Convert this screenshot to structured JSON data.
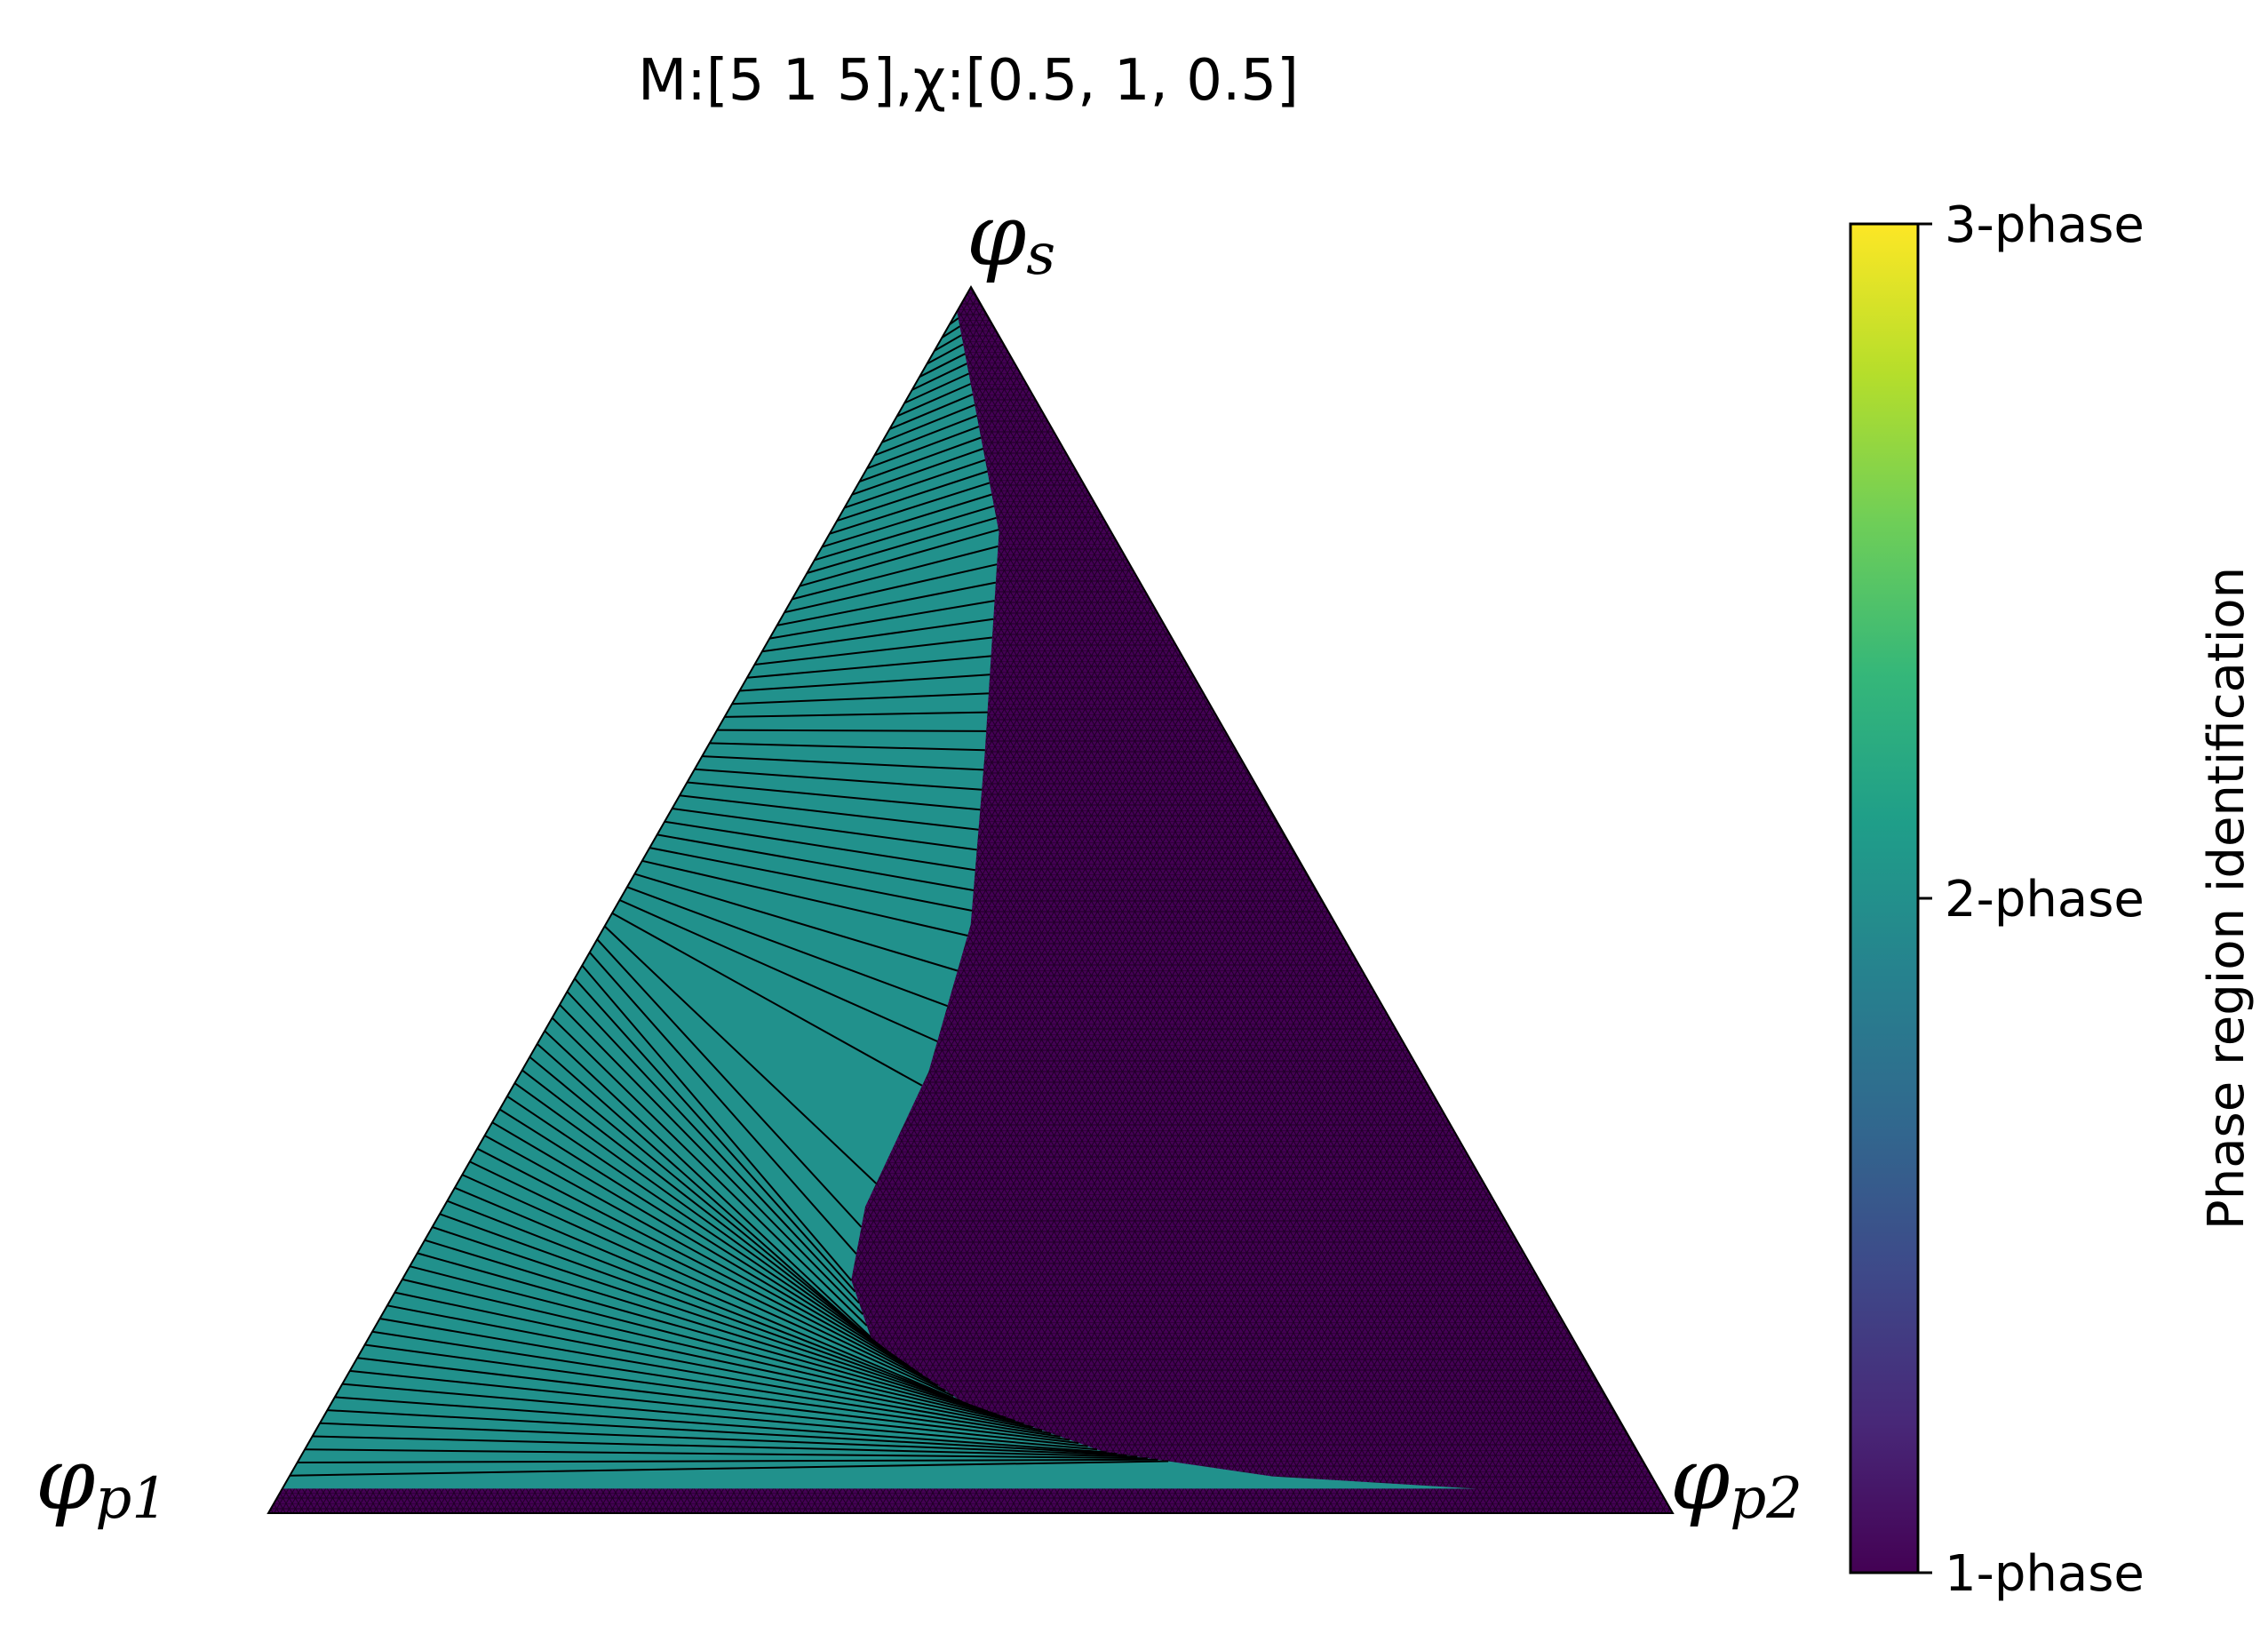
{
  "chart_data": {
    "type": "ternary",
    "title": "M:[5 1 5],χ:[0.5, 1, 0.5]",
    "vertices": {
      "top": {
        "symbol": "φ",
        "sub": "s"
      },
      "left": {
        "symbol": "φ",
        "sub": "p1"
      },
      "right": {
        "symbol": "φ",
        "sub": "p2"
      }
    },
    "colorbar": {
      "label": "Phase region identification",
      "ticks": [
        "1-phase",
        "2-phase",
        "3-phase"
      ],
      "tick_values": [
        1,
        2,
        3
      ],
      "range": [
        1,
        3
      ],
      "colormap": "viridis",
      "colormap_stops": [
        "#440154",
        "#482878",
        "#3e4989",
        "#31688e",
        "#26828e",
        "#1f9e89",
        "#35b779",
        "#6ece58",
        "#b5de2b",
        "#fde725"
      ]
    },
    "regions": [
      {
        "phase": 2,
        "color": "#21918c",
        "note": "two-phase region with tie lines"
      },
      {
        "phase": 1,
        "color": "#440154",
        "note": "one-phase region"
      }
    ],
    "binodal_phi_s_by_phi_p2": [
      {
        "phi_p2": 0.0,
        "phi_s": 0.98
      },
      {
        "phi_p2": 0.12,
        "phi_s": 0.8
      },
      {
        "phi_p2": 0.2,
        "phi_s": 0.62
      },
      {
        "phi_p2": 0.26,
        "phi_s": 0.48
      },
      {
        "phi_p2": 0.29,
        "phi_s": 0.36
      },
      {
        "phi_p2": 0.3,
        "phi_s": 0.25
      },
      {
        "phi_p2": 0.32,
        "phi_s": 0.19
      },
      {
        "phi_p2": 0.36,
        "phi_s": 0.14
      },
      {
        "phi_p2": 0.45,
        "phi_s": 0.09
      },
      {
        "phi_p2": 0.57,
        "phi_s": 0.05
      },
      {
        "phi_p2": 0.7,
        "phi_s": 0.03
      },
      {
        "phi_p2": 0.85,
        "phi_s": 0.02
      },
      {
        "phi_p2": 1.0,
        "phi_s": 0.02
      }
    ]
  }
}
